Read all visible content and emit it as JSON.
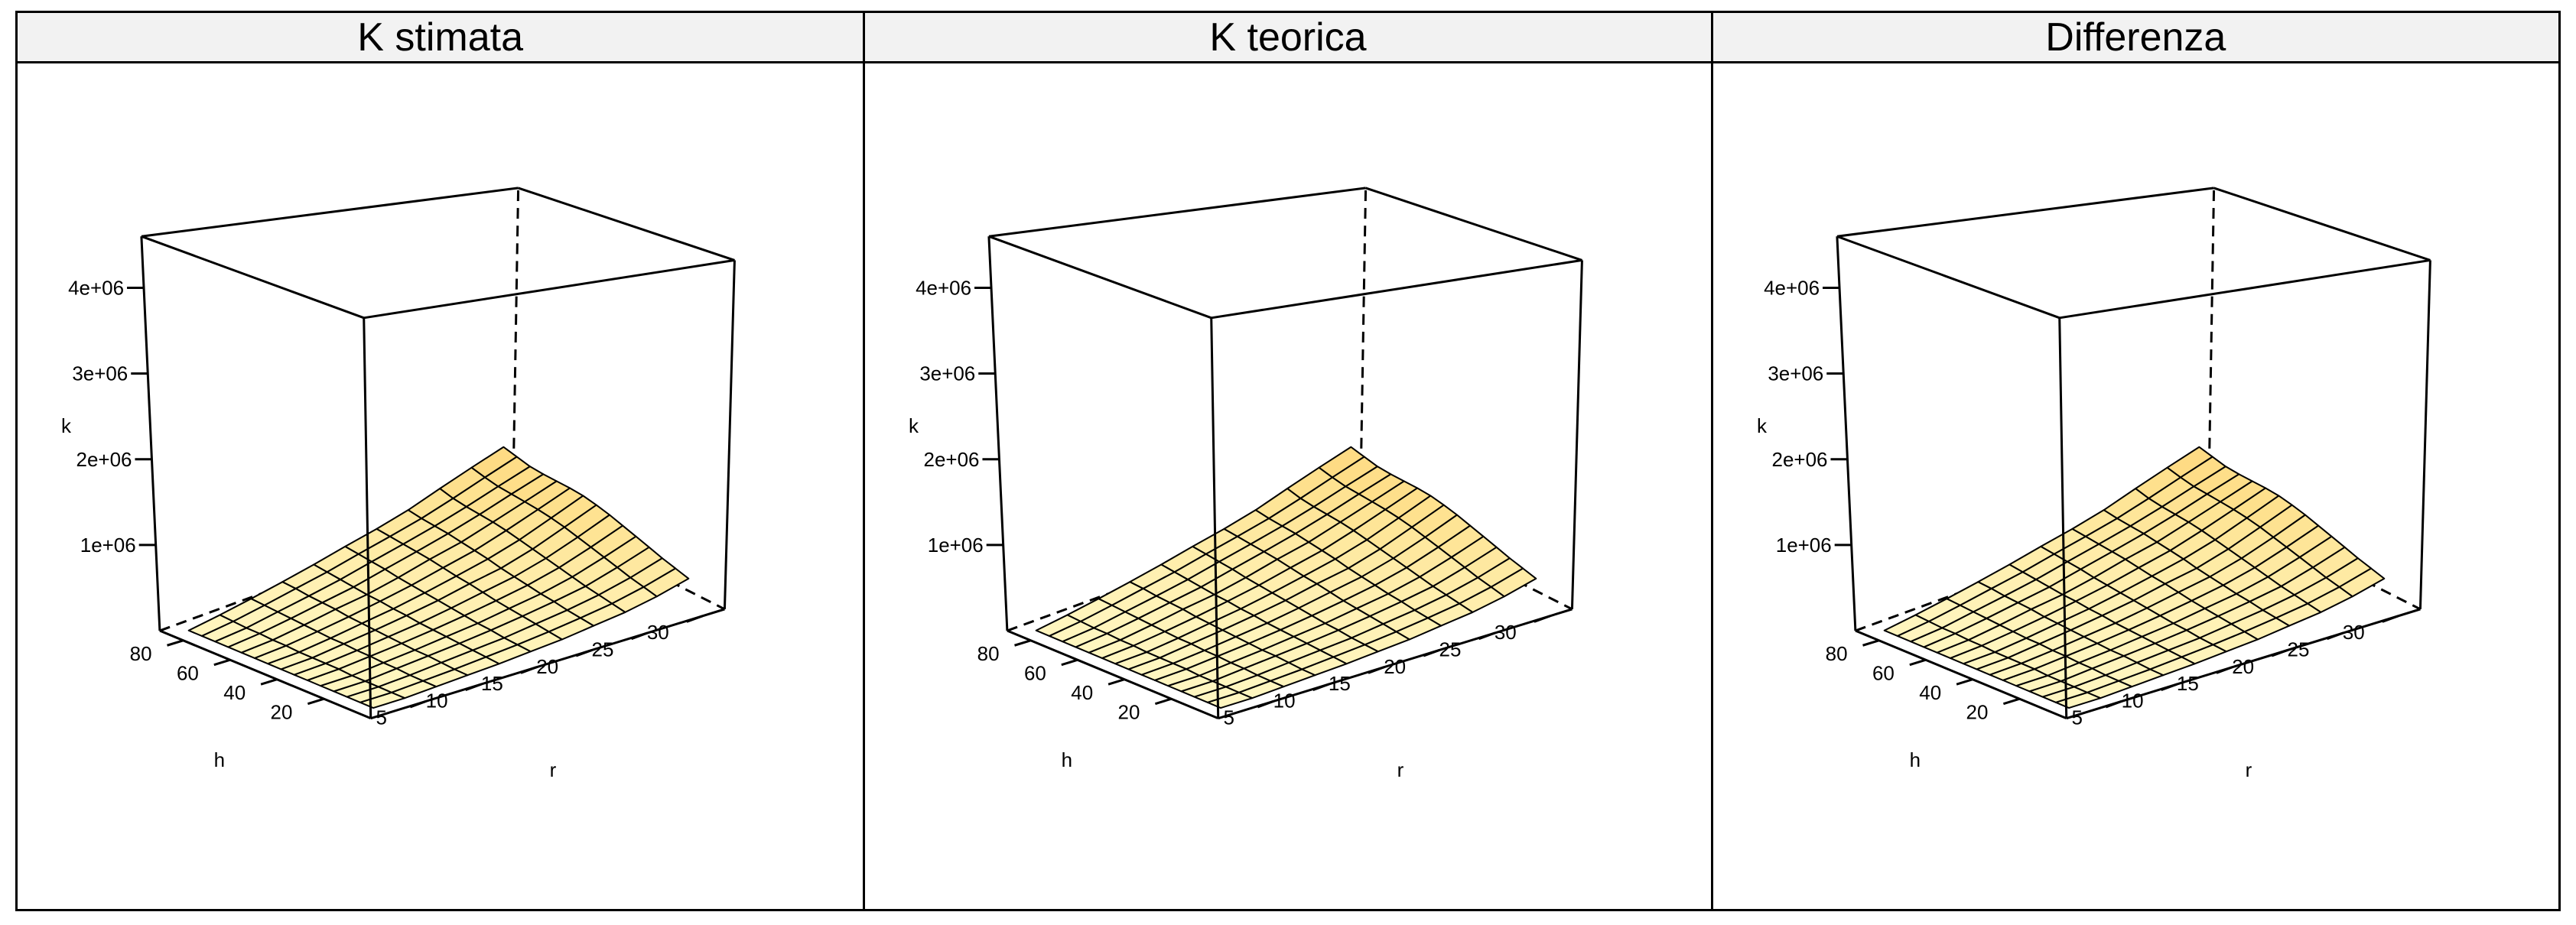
{
  "chart_data": [
    {
      "type": "surface3d",
      "title": "K stimata",
      "xlabel": "r",
      "ylabel": "h",
      "zlabel": "k",
      "x_ticks": [
        "5",
        "10",
        "15",
        "20",
        "25",
        "30"
      ],
      "y_ticks": [
        "20",
        "40",
        "60",
        "80"
      ],
      "z_ticks": [
        "1e+06",
        "2e+06",
        "3e+06",
        "4e+06"
      ],
      "xlim": [
        0,
        32
      ],
      "ylim": [
        0,
        90
      ],
      "zlim": [
        0,
        4600000
      ],
      "r": [
        2,
        4,
        6,
        8,
        10,
        12,
        14,
        16,
        18,
        20,
        22,
        24,
        26,
        28,
        30
      ],
      "h": [
        4,
        12,
        20,
        28,
        36,
        44,
        52,
        60,
        68,
        76,
        84
      ],
      "k": [
        [
          0,
          0,
          0,
          0,
          0,
          0,
          0,
          0,
          0,
          0,
          0,
          0,
          0,
          0,
          0
        ],
        [
          50000,
          40000,
          30000,
          30000,
          20000,
          20000,
          10000,
          10000,
          10000,
          10000,
          0,
          0,
          0,
          0,
          0
        ],
        [
          110000,
          100000,
          90000,
          80000,
          70000,
          60000,
          50000,
          50000,
          40000,
          40000,
          30000,
          30000,
          20000,
          20000,
          20000
        ],
        [
          180000,
          170000,
          150000,
          140000,
          130000,
          110000,
          100000,
          90000,
          80000,
          70000,
          60000,
          60000,
          50000,
          40000,
          40000
        ],
        [
          260000,
          240000,
          220000,
          200000,
          180000,
          170000,
          150000,
          140000,
          120000,
          110000,
          100000,
          90000,
          80000,
          70000,
          60000
        ],
        [
          350000,
          330000,
          310000,
          290000,
          260000,
          240000,
          220000,
          200000,
          180000,
          160000,
          140000,
          130000,
          110000,
          100000,
          90000
        ],
        [
          440000,
          420000,
          400000,
          380000,
          360000,
          330000,
          300000,
          280000,
          250000,
          220000,
          200000,
          180000,
          160000,
          140000,
          120000
        ],
        [
          550000,
          520000,
          500000,
          480000,
          450000,
          420000,
          390000,
          350000,
          320000,
          290000,
          260000,
          240000,
          210000,
          190000,
          170000
        ],
        [
          700000,
          650000,
          620000,
          600000,
          580000,
          550000,
          510000,
          470000,
          430000,
          390000,
          350000,
          310000,
          280000,
          250000,
          220000
        ],
        [
          850000,
          800000,
          760000,
          740000,
          720000,
          700000,
          670000,
          630000,
          580000,
          530000,
          480000,
          430000,
          380000,
          340000,
          300000
        ],
        [
          1000000,
          950000,
          900000,
          880000,
          870000,
          860000,
          840000,
          800000,
          750000,
          690000,
          630000,
          570000,
          510000,
          460000,
          410000
        ]
      ]
    },
    {
      "type": "surface3d",
      "title": "K teorica",
      "xlabel": "r",
      "ylabel": "h",
      "zlabel": "k",
      "x_ticks": [
        "5",
        "10",
        "15",
        "20",
        "25",
        "30"
      ],
      "y_ticks": [
        "20",
        "40",
        "60",
        "80"
      ],
      "z_ticks": [
        "1e+06",
        "2e+06",
        "3e+06",
        "4e+06"
      ],
      "xlim": [
        0,
        32
      ],
      "ylim": [
        0,
        90
      ],
      "zlim": [
        0,
        4600000
      ],
      "r": [
        2,
        4,
        6,
        8,
        10,
        12,
        14,
        16,
        18,
        20,
        22,
        24,
        26,
        28,
        30
      ],
      "h": [
        4,
        12,
        20,
        28,
        36,
        44,
        52,
        60,
        68,
        76,
        84
      ],
      "k": [
        [
          0,
          0,
          0,
          0,
          0,
          0,
          0,
          0,
          0,
          0,
          0,
          0,
          0,
          0,
          0
        ],
        [
          50000,
          40000,
          30000,
          30000,
          20000,
          20000,
          10000,
          10000,
          10000,
          10000,
          0,
          0,
          0,
          0,
          0
        ],
        [
          110000,
          100000,
          90000,
          80000,
          70000,
          60000,
          50000,
          50000,
          40000,
          40000,
          30000,
          30000,
          20000,
          20000,
          20000
        ],
        [
          180000,
          170000,
          150000,
          140000,
          130000,
          110000,
          100000,
          90000,
          80000,
          70000,
          60000,
          60000,
          50000,
          40000,
          40000
        ],
        [
          260000,
          240000,
          220000,
          200000,
          180000,
          170000,
          150000,
          140000,
          120000,
          110000,
          100000,
          90000,
          80000,
          70000,
          60000
        ],
        [
          350000,
          330000,
          310000,
          290000,
          260000,
          240000,
          220000,
          200000,
          180000,
          160000,
          140000,
          130000,
          110000,
          100000,
          90000
        ],
        [
          440000,
          420000,
          400000,
          380000,
          360000,
          330000,
          300000,
          280000,
          250000,
          220000,
          200000,
          180000,
          160000,
          140000,
          120000
        ],
        [
          550000,
          520000,
          500000,
          480000,
          450000,
          420000,
          390000,
          350000,
          320000,
          290000,
          260000,
          240000,
          210000,
          190000,
          170000
        ],
        [
          700000,
          650000,
          620000,
          600000,
          580000,
          550000,
          510000,
          470000,
          430000,
          390000,
          350000,
          310000,
          280000,
          250000,
          220000
        ],
        [
          850000,
          800000,
          760000,
          740000,
          720000,
          700000,
          670000,
          630000,
          580000,
          530000,
          480000,
          430000,
          380000,
          340000,
          300000
        ],
        [
          1000000,
          950000,
          900000,
          880000,
          870000,
          860000,
          840000,
          800000,
          750000,
          690000,
          630000,
          570000,
          510000,
          460000,
          410000
        ]
      ]
    },
    {
      "type": "surface3d",
      "title": "Differenza",
      "xlabel": "r",
      "ylabel": "h",
      "zlabel": "k",
      "x_ticks": [
        "5",
        "10",
        "15",
        "20",
        "25",
        "30"
      ],
      "y_ticks": [
        "20",
        "40",
        "60",
        "80"
      ],
      "z_ticks": [
        "1e+06",
        "2e+06",
        "3e+06",
        "4e+06"
      ],
      "xlim": [
        0,
        32
      ],
      "ylim": [
        0,
        90
      ],
      "zlim": [
        0,
        4600000
      ],
      "r": [
        2,
        4,
        6,
        8,
        10,
        12,
        14,
        16,
        18,
        20,
        22,
        24,
        26,
        28,
        30
      ],
      "h": [
        4,
        12,
        20,
        28,
        36,
        44,
        52,
        60,
        68,
        76,
        84
      ],
      "k": [
        [
          0,
          0,
          0,
          0,
          0,
          0,
          0,
          0,
          0,
          0,
          0,
          0,
          0,
          0,
          0
        ],
        [
          50000,
          40000,
          30000,
          30000,
          20000,
          20000,
          10000,
          10000,
          10000,
          10000,
          0,
          0,
          0,
          0,
          0
        ],
        [
          110000,
          100000,
          90000,
          80000,
          70000,
          60000,
          50000,
          50000,
          40000,
          40000,
          30000,
          30000,
          20000,
          20000,
          20000
        ],
        [
          180000,
          170000,
          150000,
          140000,
          130000,
          110000,
          100000,
          90000,
          80000,
          70000,
          60000,
          60000,
          50000,
          40000,
          40000
        ],
        [
          260000,
          240000,
          220000,
          200000,
          180000,
          170000,
          150000,
          140000,
          120000,
          110000,
          100000,
          90000,
          80000,
          70000,
          60000
        ],
        [
          350000,
          330000,
          310000,
          290000,
          260000,
          240000,
          220000,
          200000,
          180000,
          160000,
          140000,
          130000,
          110000,
          100000,
          90000
        ],
        [
          440000,
          420000,
          400000,
          380000,
          360000,
          330000,
          300000,
          280000,
          250000,
          220000,
          200000,
          180000,
          160000,
          140000,
          120000
        ],
        [
          550000,
          520000,
          500000,
          480000,
          450000,
          420000,
          390000,
          350000,
          320000,
          290000,
          260000,
          240000,
          210000,
          190000,
          170000
        ],
        [
          700000,
          650000,
          620000,
          600000,
          580000,
          550000,
          510000,
          470000,
          430000,
          390000,
          350000,
          310000,
          280000,
          250000,
          220000
        ],
        [
          850000,
          800000,
          760000,
          740000,
          720000,
          700000,
          670000,
          630000,
          580000,
          530000,
          480000,
          430000,
          380000,
          340000,
          300000
        ],
        [
          1000000,
          950000,
          900000,
          880000,
          870000,
          860000,
          840000,
          800000,
          750000,
          690000,
          630000,
          570000,
          510000,
          460000,
          410000
        ]
      ]
    }
  ]
}
